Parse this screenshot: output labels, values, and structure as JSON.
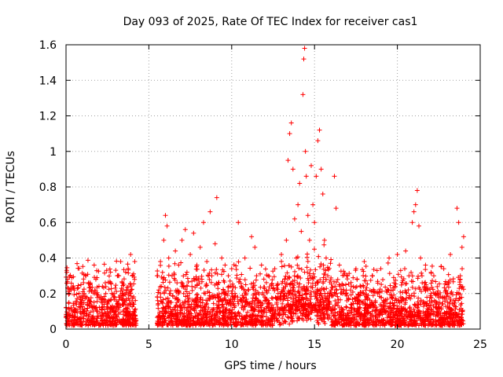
{
  "chart_data": {
    "type": "scatter",
    "title": "Day 093 of 2025, Rate Of TEC Index for receiver cas1",
    "xlabel": "GPS time / hours",
    "ylabel": "ROTI / TECUs",
    "xlim": [
      0,
      25
    ],
    "ylim": [
      0,
      1.6
    ],
    "xticks": [
      0,
      5,
      10,
      15,
      20,
      25
    ],
    "yticks": [
      0,
      0.2,
      0.4,
      0.6,
      0.8,
      1,
      1.2,
      1.4,
      1.6
    ],
    "xtick_labels": [
      "0",
      "5",
      "10",
      "15",
      "20",
      "25"
    ],
    "ytick_labels": [
      "0",
      "0.2",
      "0.4",
      "0.6",
      "0.8",
      "1",
      "1.2",
      "1.4",
      "1.6"
    ],
    "grid": true,
    "marker": "plus",
    "color": "#ff0000",
    "series": [
      {
        "name": "",
        "points": [
          [
            0.05,
            0.32
          ],
          [
            0.1,
            0.28
          ],
          [
            0.2,
            0.2
          ],
          [
            0.3,
            0.12
          ],
          [
            0.4,
            0.08
          ],
          [
            0.5,
            0.22
          ],
          [
            0.6,
            0.15
          ],
          [
            0.7,
            0.05
          ],
          [
            0.8,
            0.18
          ],
          [
            0.9,
            0.25
          ],
          [
            1.0,
            0.1
          ],
          [
            1.1,
            0.2
          ],
          [
            1.2,
            0.3
          ],
          [
            1.3,
            0.15
          ],
          [
            1.4,
            0.08
          ],
          [
            1.5,
            0.22
          ],
          [
            1.6,
            0.12
          ],
          [
            1.7,
            0.36
          ],
          [
            1.8,
            0.28
          ],
          [
            1.9,
            0.1
          ],
          [
            2.0,
            0.18
          ],
          [
            2.1,
            0.06
          ],
          [
            2.2,
            0.24
          ],
          [
            2.3,
            0.14
          ],
          [
            2.4,
            0.2
          ],
          [
            2.5,
            0.08
          ],
          [
            2.6,
            0.16
          ],
          [
            2.7,
            0.26
          ],
          [
            2.8,
            0.12
          ],
          [
            2.9,
            0.2
          ],
          [
            3.0,
            0.1
          ],
          [
            3.1,
            0.3
          ],
          [
            3.2,
            0.18
          ],
          [
            3.3,
            0.38
          ],
          [
            3.4,
            0.26
          ],
          [
            3.5,
            0.14
          ],
          [
            3.6,
            0.32
          ],
          [
            3.7,
            0.1
          ],
          [
            3.8,
            0.2
          ],
          [
            3.9,
            0.42
          ],
          [
            4.0,
            0.3
          ],
          [
            4.1,
            0.14
          ],
          [
            4.15,
            0.38
          ],
          [
            4.2,
            0.06
          ],
          [
            5.5,
            0.3
          ],
          [
            5.6,
            0.22
          ],
          [
            5.7,
            0.38
          ],
          [
            5.8,
            0.1
          ],
          [
            5.9,
            0.5
          ],
          [
            6.0,
            0.64
          ],
          [
            6.1,
            0.58
          ],
          [
            6.2,
            0.4
          ],
          [
            6.3,
            0.2
          ],
          [
            6.4,
            0.3
          ],
          [
            6.5,
            0.08
          ],
          [
            6.6,
            0.44
          ],
          [
            6.7,
            0.26
          ],
          [
            6.8,
            0.36
          ],
          [
            6.9,
            0.12
          ],
          [
            7.0,
            0.5
          ],
          [
            7.1,
            0.2
          ],
          [
            7.2,
            0.56
          ],
          [
            7.3,
            0.32
          ],
          [
            7.4,
            0.1
          ],
          [
            7.5,
            0.42
          ],
          [
            7.6,
            0.24
          ],
          [
            7.7,
            0.54
          ],
          [
            7.8,
            0.16
          ],
          [
            7.9,
            0.36
          ],
          [
            8.0,
            0.08
          ],
          [
            8.1,
            0.46
          ],
          [
            8.2,
            0.28
          ],
          [
            8.3,
            0.6
          ],
          [
            8.4,
            0.2
          ],
          [
            8.5,
            0.38
          ],
          [
            8.6,
            0.12
          ],
          [
            8.7,
            0.66
          ],
          [
            8.8,
            0.3
          ],
          [
            8.9,
            0.18
          ],
          [
            9.0,
            0.48
          ],
          [
            9.1,
            0.74
          ],
          [
            9.2,
            0.26
          ],
          [
            9.3,
            0.1
          ],
          [
            9.4,
            0.4
          ],
          [
            9.5,
            0.22
          ],
          [
            9.6,
            0.36
          ],
          [
            9.7,
            0.14
          ],
          [
            9.8,
            0.3
          ],
          [
            9.9,
            0.06
          ],
          [
            10.0,
            0.34
          ],
          [
            10.2,
            0.2
          ],
          [
            10.4,
            0.6
          ],
          [
            10.5,
            0.28
          ],
          [
            10.6,
            0.12
          ],
          [
            10.8,
            0.4
          ],
          [
            11.0,
            0.22
          ],
          [
            11.2,
            0.52
          ],
          [
            11.4,
            0.46
          ],
          [
            11.5,
            0.3
          ],
          [
            11.6,
            0.1
          ],
          [
            11.8,
            0.36
          ],
          [
            12.0,
            0.18
          ],
          [
            12.2,
            0.3
          ],
          [
            12.4,
            0.12
          ],
          [
            12.6,
            0.34
          ],
          [
            12.8,
            0.2
          ],
          [
            13.0,
            0.42
          ],
          [
            13.2,
            0.28
          ],
          [
            13.3,
            0.5
          ],
          [
            13.4,
            0.95
          ],
          [
            13.5,
            1.1
          ],
          [
            13.6,
            1.16
          ],
          [
            13.7,
            0.9
          ],
          [
            13.8,
            0.62
          ],
          [
            13.9,
            0.4
          ],
          [
            14.0,
            0.7
          ],
          [
            14.1,
            0.82
          ],
          [
            14.2,
            0.55
          ],
          [
            14.3,
            1.32
          ],
          [
            14.35,
            1.52
          ],
          [
            14.4,
            1.58
          ],
          [
            14.45,
            1.0
          ],
          [
            14.5,
            0.86
          ],
          [
            14.6,
            0.64
          ],
          [
            14.7,
            0.5
          ],
          [
            14.8,
            0.92
          ],
          [
            14.9,
            0.7
          ],
          [
            15.0,
            0.6
          ],
          [
            15.1,
            0.86
          ],
          [
            15.2,
            1.06
          ],
          [
            15.3,
            1.12
          ],
          [
            15.4,
            0.9
          ],
          [
            15.5,
            0.76
          ],
          [
            15.6,
            0.5
          ],
          [
            15.7,
            0.4
          ],
          [
            15.8,
            0.3
          ],
          [
            16.0,
            0.22
          ],
          [
            16.2,
            0.86
          ],
          [
            16.3,
            0.68
          ],
          [
            16.5,
            0.36
          ],
          [
            16.7,
            0.2
          ],
          [
            17.0,
            0.3
          ],
          [
            17.2,
            0.14
          ],
          [
            17.5,
            0.34
          ],
          [
            17.8,
            0.24
          ],
          [
            18.0,
            0.38
          ],
          [
            18.2,
            0.12
          ],
          [
            18.5,
            0.3
          ],
          [
            18.8,
            0.2
          ],
          [
            19.0,
            0.34
          ],
          [
            19.2,
            0.16
          ],
          [
            19.5,
            0.4
          ],
          [
            19.8,
            0.26
          ],
          [
            20.0,
            0.42
          ],
          [
            20.2,
            0.18
          ],
          [
            20.5,
            0.44
          ],
          [
            20.7,
            0.3
          ],
          [
            20.9,
            0.6
          ],
          [
            21.0,
            0.66
          ],
          [
            21.1,
            0.7
          ],
          [
            21.2,
            0.78
          ],
          [
            21.3,
            0.58
          ],
          [
            21.4,
            0.4
          ],
          [
            21.5,
            0.26
          ],
          [
            21.7,
            0.36
          ],
          [
            22.0,
            0.18
          ],
          [
            22.2,
            0.3
          ],
          [
            22.5,
            0.12
          ],
          [
            22.8,
            0.34
          ],
          [
            23.0,
            0.2
          ],
          [
            23.2,
            0.42
          ],
          [
            23.4,
            0.16
          ],
          [
            23.6,
            0.68
          ],
          [
            23.7,
            0.6
          ],
          [
            23.8,
            0.3
          ],
          [
            23.9,
            0.46
          ],
          [
            24.0,
            0.52
          ]
        ]
      }
    ],
    "dense_band": {
      "segments": [
        [
          0,
          4.25
        ],
        [
          5.5,
          24.0
        ]
      ],
      "typical_max": 0.25
    }
  }
}
